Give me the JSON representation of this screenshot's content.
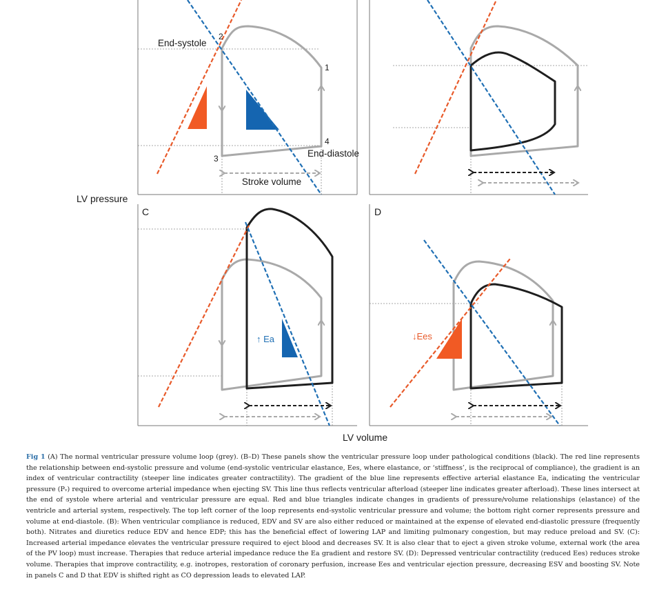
{
  "figure": {
    "y_axis_label": "LV pressure",
    "x_axis_label": "LV volume",
    "panels": {
      "A": {
        "point_labels": [
          "1",
          "2",
          "3",
          "4"
        ],
        "annotations": {
          "end_systole": "End-systole",
          "end_diastole": "End-diastole",
          "stroke_volume": "Stroke volume"
        }
      },
      "B": {},
      "C": {
        "letter": "C",
        "annotation": "↑ Ea"
      },
      "D": {
        "letter": "D",
        "annotation": "↓Ees"
      }
    },
    "colors": {
      "normal_loop": "#a9a9a9",
      "pathological_loop": "#1e1e1e",
      "ees_line": "#e85a2a",
      "ea_line": "#1f6fb4",
      "ees_triangle": "#f15a24",
      "ea_triangle": "#1565b0",
      "guide_lines": "#8a8a8a"
    }
  },
  "caption": {
    "figure_number": "Fig 1",
    "text": "(A) The normal ventricular pressure volume loop (grey). (B–D) These panels show the ventricular pressure loop under pathological conditions (black). The red line represents the relationship between end-systolic pressure and volume (end-systolic ventricular elastance, Ees, where elastance, or ‘stiffness’, is the reciprocal of compliance), the gradient is an index of ventricular contractility (steeper line indicates greater contractility). The gradient of the blue line represents effective arterial elastance Ea, indicating the ventricular pressure (Pᵥ) required to overcome arterial impedance when ejecting SV. This line thus reflects ventricular afterload (steeper line indicates greater afterload). These lines intersect at the end of systole where arterial and ventricular pressure are equal. Red and blue triangles indicate changes in gradients of pressure/volume relationships (elastance) of the ventricle and arterial system, respectively. The top left corner of the loop represents end-systolic ventricular pressure and volume; the bottom right corner represents pressure and volume at end-diastole. (B): When ventricular compliance is reduced, EDV and SV are also either reduced or maintained at the expense of elevated end-diastolic pressure (frequently both). Nitrates and diuretics reduce EDV and hence EDP; this has the beneficial effect of lowering LAP and limiting pulmonary congestion, but may reduce preload and SV. (C): Increased arterial impedance elevates the ventricular pressure required to eject blood and decreases SV. It is also clear that to eject a given stroke volume, external work (the area of the PV loop) must increase. Therapies that reduce arterial impedance reduce the Ea gradient and restore SV. (D): Depressed ventricular contractility (reduced Ees) reduces stroke volume. Therapies that improve contractility, e.g. inotropes, restoration of coronary perfusion, increase Ees and ventricular ejection pressure, decreasing ESV and boosting SV. Note in panels C and D that EDV is shifted right as CO depression leads to elevated LAP."
  }
}
